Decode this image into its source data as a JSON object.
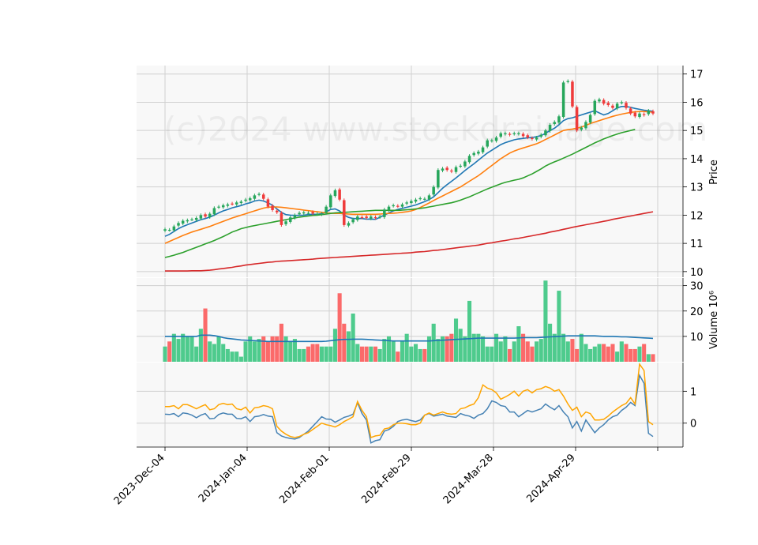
{
  "watermark": "(c)2024 www.stockdrainage.com",
  "colors": {
    "up": "#26a65b",
    "down": "#ef3b3b",
    "up_volume": "#4ecb8d",
    "down_volume": "#fb6a6a",
    "ma1": "#1f77b4",
    "ma2": "#ff7f0e",
    "ma3": "#2ca02c",
    "ma4": "#d62728",
    "volume_ma": "#1f77b4",
    "osc_fast": "#4682b4",
    "osc_slow": "#ffa500",
    "panel_bg": "#f8f8f8",
    "grid": "#d0d0d0"
  },
  "chart_data": [
    {
      "type": "candlestick",
      "ylabel": "Price",
      "ylim": [
        9.8,
        17.3
      ],
      "yticks": [
        "10",
        "11",
        "12",
        "13",
        "14",
        "15",
        "16",
        "17"
      ],
      "xticks": [
        "2023-Dec-04",
        "2024-Jan-04",
        "2024-Feb-01",
        "2024-Feb-29",
        "2024-Mar-28",
        "2024-Apr-29"
      ],
      "grid": true,
      "close": [
        11.5,
        11.48,
        11.6,
        11.72,
        11.8,
        11.82,
        11.85,
        11.9,
        12.0,
        11.95,
        12.05,
        12.25,
        12.3,
        12.35,
        12.38,
        12.4,
        12.45,
        12.48,
        12.55,
        12.6,
        12.7,
        12.75,
        12.58,
        12.3,
        12.18,
        12.1,
        11.65,
        11.78,
        11.92,
        12.0,
        12.08,
        12.1,
        12.08,
        12.06,
        12.05,
        12.05,
        12.3,
        12.7,
        12.88,
        12.55,
        11.65,
        11.72,
        11.85,
        11.95,
        11.92,
        11.9,
        11.95,
        11.9,
        11.95,
        12.2,
        12.3,
        12.35,
        12.32,
        12.38,
        12.45,
        12.5,
        12.55,
        12.6,
        12.58,
        12.7,
        13.0,
        13.6,
        13.65,
        13.6,
        13.55,
        13.7,
        13.75,
        13.9,
        14.1,
        14.2,
        14.25,
        14.4,
        14.65,
        14.65,
        14.75,
        14.9,
        14.9,
        14.85,
        14.9,
        14.9,
        14.8,
        14.75,
        14.7,
        14.75,
        14.85,
        15.0,
        15.2,
        15.3,
        15.5,
        16.7,
        16.75,
        15.85,
        15.0,
        15.1,
        15.3,
        15.55,
        16.05,
        16.1,
        15.95,
        15.9,
        15.8,
        15.95,
        16.0,
        15.8,
        15.6,
        15.5,
        15.6,
        15.55,
        15.7,
        15.6
      ],
      "series": [
        {
          "name": "MA1",
          "values": [
            11.25,
            11.32,
            11.42,
            11.52,
            11.6,
            11.66,
            11.72,
            11.78,
            11.84,
            11.88,
            11.93,
            12.0,
            12.08,
            12.15,
            12.2,
            12.26,
            12.3,
            12.34,
            12.4,
            12.44,
            12.5,
            12.53,
            12.5,
            12.44,
            12.35,
            12.22,
            12.1,
            12.02,
            12.0,
            11.99,
            11.99,
            12.0,
            12.02,
            12.03,
            12.03,
            12.05,
            12.12,
            12.2,
            12.22,
            12.15,
            12.0,
            11.92,
            11.88,
            11.88,
            11.88,
            11.86,
            11.86,
            11.85,
            11.92,
            12.0,
            12.08,
            12.15,
            12.2,
            12.24,
            12.28,
            12.32,
            12.36,
            12.42,
            12.48,
            12.55,
            12.65,
            12.8,
            12.95,
            13.08,
            13.2,
            13.32,
            13.45,
            13.58,
            13.7,
            13.82,
            13.95,
            14.08,
            14.2,
            14.3,
            14.4,
            14.5,
            14.57,
            14.62,
            14.67,
            14.7,
            14.72,
            14.74,
            14.75,
            14.78,
            14.82,
            14.9,
            15.0,
            15.08,
            15.2,
            15.35,
            15.42,
            15.45,
            15.5,
            15.55,
            15.6,
            15.65,
            15.7,
            15.62,
            15.55,
            15.6,
            15.7,
            15.8,
            15.85,
            15.85,
            15.82,
            15.78,
            15.75,
            15.72,
            15.7,
            15.68
          ]
        },
        {
          "name": "MA2",
          "values": [
            11.0,
            11.07,
            11.14,
            11.21,
            11.28,
            11.34,
            11.4,
            11.45,
            11.5,
            11.55,
            11.6,
            11.66,
            11.72,
            11.78,
            11.84,
            11.9,
            11.95,
            12.0,
            12.05,
            12.1,
            12.15,
            12.2,
            12.25,
            12.28,
            12.29,
            12.29,
            12.28,
            12.26,
            12.24,
            12.22,
            12.2,
            12.18,
            12.16,
            12.14,
            12.12,
            12.1,
            12.08,
            12.07,
            12.06,
            12.06,
            12.05,
            12.04,
            12.03,
            12.03,
            12.03,
            12.03,
            12.03,
            12.03,
            12.04,
            12.05,
            12.06,
            12.07,
            12.08,
            12.1,
            12.12,
            12.15,
            12.2,
            12.27,
            12.35,
            12.43,
            12.52,
            12.6,
            12.68,
            12.76,
            12.84,
            12.92,
            13.0,
            13.1,
            13.2,
            13.3,
            13.4,
            13.52,
            13.64,
            13.76,
            13.88,
            14.0,
            14.1,
            14.2,
            14.27,
            14.33,
            14.38,
            14.43,
            14.48,
            14.53,
            14.6,
            14.68,
            14.76,
            14.84,
            14.92,
            15.0,
            15.03,
            15.05,
            15.08,
            15.12,
            15.18,
            15.25,
            15.3,
            15.35,
            15.4,
            15.45,
            15.5,
            15.54,
            15.58,
            15.61,
            15.64,
            15.66,
            15.67,
            15.67,
            15.66,
            15.65
          ]
        },
        {
          "name": "MA3",
          "values": [
            10.5,
            10.54,
            10.58,
            10.63,
            10.68,
            10.74,
            10.8,
            10.86,
            10.92,
            10.98,
            11.04,
            11.1,
            11.17,
            11.24,
            11.32,
            11.4,
            11.46,
            11.52,
            11.56,
            11.6,
            11.63,
            11.66,
            11.69,
            11.72,
            11.75,
            11.78,
            11.81,
            11.84,
            11.87,
            11.9,
            11.93,
            11.95,
            11.97,
            11.99,
            12.0,
            12.02,
            12.04,
            12.06,
            12.08,
            12.09,
            12.1,
            12.11,
            12.12,
            12.13,
            12.14,
            12.15,
            12.16,
            12.17,
            12.17,
            12.17,
            12.17,
            12.17,
            12.17,
            12.18,
            12.19,
            12.2,
            12.22,
            12.24,
            12.26,
            12.29,
            12.32,
            12.35,
            12.38,
            12.41,
            12.44,
            12.48,
            12.53,
            12.59,
            12.65,
            12.72,
            12.79,
            12.86,
            12.93,
            12.99,
            13.05,
            13.11,
            13.16,
            13.2,
            13.24,
            13.27,
            13.32,
            13.39,
            13.46,
            13.55,
            13.64,
            13.74,
            13.82,
            13.89,
            13.95,
            14.02,
            14.09,
            14.16,
            14.24,
            14.32,
            14.4,
            14.48,
            14.56,
            14.63,
            14.7,
            14.76,
            14.82,
            14.87,
            14.92,
            14.96,
            15.0,
            15.04
          ]
        },
        {
          "name": "MA4",
          "values": [
            10.02,
            10.02,
            10.02,
            10.02,
            10.02,
            10.02,
            10.03,
            10.03,
            10.03,
            10.04,
            10.05,
            10.07,
            10.09,
            10.11,
            10.13,
            10.15,
            10.18,
            10.2,
            10.23,
            10.25,
            10.27,
            10.29,
            10.31,
            10.33,
            10.34,
            10.36,
            10.37,
            10.38,
            10.39,
            10.4,
            10.41,
            10.42,
            10.43,
            10.44,
            10.46,
            10.47,
            10.48,
            10.49,
            10.5,
            10.51,
            10.52,
            10.53,
            10.54,
            10.55,
            10.56,
            10.57,
            10.58,
            10.59,
            10.6,
            10.61,
            10.62,
            10.63,
            10.64,
            10.65,
            10.66,
            10.67,
            10.69,
            10.7,
            10.71,
            10.73,
            10.75,
            10.76,
            10.78,
            10.8,
            10.82,
            10.84,
            10.86,
            10.88,
            10.9,
            10.92,
            10.94,
            10.97,
            11.0,
            11.02,
            11.05,
            11.08,
            11.1,
            11.13,
            11.16,
            11.18,
            11.21,
            11.24,
            11.27,
            11.3,
            11.33,
            11.36,
            11.4,
            11.43,
            11.46,
            11.5,
            11.53,
            11.57,
            11.6,
            11.63,
            11.66,
            11.69,
            11.72,
            11.75,
            11.78,
            11.81,
            11.85,
            11.88,
            11.91,
            11.94,
            11.97,
            12.0,
            12.03,
            12.06,
            12.09,
            12.12
          ]
        }
      ]
    },
    {
      "type": "bar",
      "ylabel": "Volume  10⁶",
      "ylim": [
        0,
        33
      ],
      "yticks": [
        "10",
        "20",
        "30"
      ],
      "grid": true,
      "values": [
        6,
        8,
        11,
        9,
        11,
        10,
        10,
        6,
        13,
        21,
        8,
        7,
        10,
        7,
        5,
        4,
        4,
        2,
        8,
        10,
        8,
        9,
        10,
        8,
        10,
        10,
        15,
        10,
        8,
        9,
        5,
        5,
        6,
        7,
        7,
        6,
        6,
        6,
        13,
        27,
        15,
        12,
        19,
        7,
        6,
        6,
        6,
        6,
        5,
        9,
        10,
        8,
        4,
        8,
        11,
        6,
        7,
        5,
        5,
        10,
        15,
        9,
        10,
        10,
        11,
        17,
        13,
        10,
        24,
        11,
        11,
        10,
        6,
        6,
        11,
        8,
        10,
        5,
        8,
        14,
        11,
        8,
        6,
        8,
        9,
        32,
        15,
        11,
        28,
        11,
        8,
        9,
        5,
        11,
        7,
        5,
        6,
        7,
        7,
        6,
        7,
        4,
        8,
        7,
        5,
        5,
        6,
        7,
        3,
        3
      ],
      "volume_ma": [
        10,
        10,
        10,
        10,
        10,
        10,
        10,
        10,
        10.5,
        10.5,
        10.5,
        10.3,
        10,
        9.5,
        9.2,
        9,
        8.8,
        8.6,
        8.5,
        8.4,
        8.3,
        8.2,
        8.1,
        8,
        8,
        8,
        8,
        8,
        8,
        8,
        8,
        8,
        8,
        8,
        8,
        8,
        8.1,
        8.3,
        8.5,
        8.7,
        8.8,
        8.8,
        8.9,
        8.9,
        8.9,
        8.8,
        8.7,
        8.6,
        8.5,
        8.4,
        8.3,
        8.2,
        8.2,
        8.2,
        8.2,
        8.2,
        8.2,
        8.2,
        8.2,
        8.2,
        8.3,
        8.4,
        8.5,
        8.6,
        8.7,
        8.8,
        8.9,
        9,
        9.1,
        9.2,
        9.3,
        9.3,
        9.3,
        9.3,
        9.3,
        9.3,
        9.3,
        9.3,
        9.3,
        9.4,
        9.5,
        9.5,
        9.5,
        9.5,
        9.6,
        9.7,
        9.8,
        9.9,
        10,
        10.1,
        10.2,
        10.2,
        10.2,
        10.2,
        10.2,
        10.2,
        10.2,
        10.1,
        10,
        10,
        10,
        9.9,
        9.8,
        9.8,
        9.7,
        9.6,
        9.5,
        9.4,
        9.3,
        9.2
      ]
    },
    {
      "type": "line",
      "ylim": [
        -0.75,
        1.9
      ],
      "yticks": [
        "0",
        "1"
      ],
      "grid": true,
      "series": [
        {
          "name": "osc_fast",
          "values": [
            0.28,
            0.27,
            0.3,
            0.2,
            0.32,
            0.3,
            0.25,
            0.17,
            0.25,
            0.3,
            0.14,
            0.15,
            0.27,
            0.32,
            0.28,
            0.28,
            0.15,
            0.14,
            0.2,
            0.05,
            0.2,
            0.22,
            0.27,
            0.22,
            0.2,
            -0.3,
            -0.4,
            -0.45,
            -0.48,
            -0.5,
            -0.45,
            -0.35,
            -0.25,
            -0.1,
            0.05,
            0.2,
            0.13,
            0.12,
            0.03,
            0.1,
            0.18,
            0.22,
            0.28,
            0.64,
            0.3,
            0.1,
            -0.62,
            -0.55,
            -0.52,
            -0.25,
            -0.2,
            -0.1,
            0.05,
            0.1,
            0.12,
            0.08,
            0.05,
            0.1,
            0.25,
            0.3,
            0.22,
            0.25,
            0.28,
            0.22,
            0.2,
            0.18,
            0.3,
            0.25,
            0.22,
            0.15,
            0.25,
            0.3,
            0.45,
            0.7,
            0.65,
            0.55,
            0.52,
            0.35,
            0.35,
            0.2,
            0.3,
            0.4,
            0.35,
            0.4,
            0.45,
            0.6,
            0.5,
            0.42,
            0.55,
            0.35,
            0.2,
            -0.15,
            0.05,
            -0.25,
            0.1,
            -0.1,
            -0.3,
            -0.15,
            -0.05,
            0.1,
            0.2,
            0.25,
            0.4,
            0.5,
            0.65,
            0.55,
            1.5,
            1.25,
            -0.32,
            -0.42
          ]
        },
        {
          "name": "osc_slow",
          "values": [
            0.52,
            0.52,
            0.55,
            0.45,
            0.58,
            0.58,
            0.52,
            0.45,
            0.52,
            0.58,
            0.42,
            0.45,
            0.58,
            0.62,
            0.58,
            0.6,
            0.45,
            0.42,
            0.5,
            0.32,
            0.48,
            0.5,
            0.55,
            0.52,
            0.45,
            -0.1,
            -0.25,
            -0.35,
            -0.42,
            -0.45,
            -0.42,
            -0.35,
            -0.3,
            -0.2,
            -0.1,
            0.0,
            -0.05,
            -0.08,
            -0.12,
            -0.05,
            0.05,
            0.12,
            0.2,
            0.68,
            0.4,
            0.2,
            -0.45,
            -0.4,
            -0.38,
            -0.18,
            -0.15,
            -0.05,
            0.0,
            0.0,
            -0.02,
            -0.05,
            -0.05,
            0.0,
            0.25,
            0.32,
            0.25,
            0.3,
            0.35,
            0.3,
            0.28,
            0.3,
            0.45,
            0.48,
            0.55,
            0.6,
            0.8,
            1.2,
            1.1,
            1.05,
            0.95,
            0.75,
            0.82,
            0.9,
            1.0,
            0.85,
            1.0,
            1.05,
            0.95,
            1.05,
            1.08,
            1.15,
            1.1,
            1.0,
            1.05,
            0.85,
            0.6,
            0.4,
            0.5,
            0.2,
            0.35,
            0.3,
            0.1,
            0.1,
            0.12,
            0.22,
            0.35,
            0.45,
            0.55,
            0.62,
            0.8,
            0.6,
            1.85,
            1.65,
            0.05,
            -0.05
          ]
        }
      ]
    }
  ]
}
